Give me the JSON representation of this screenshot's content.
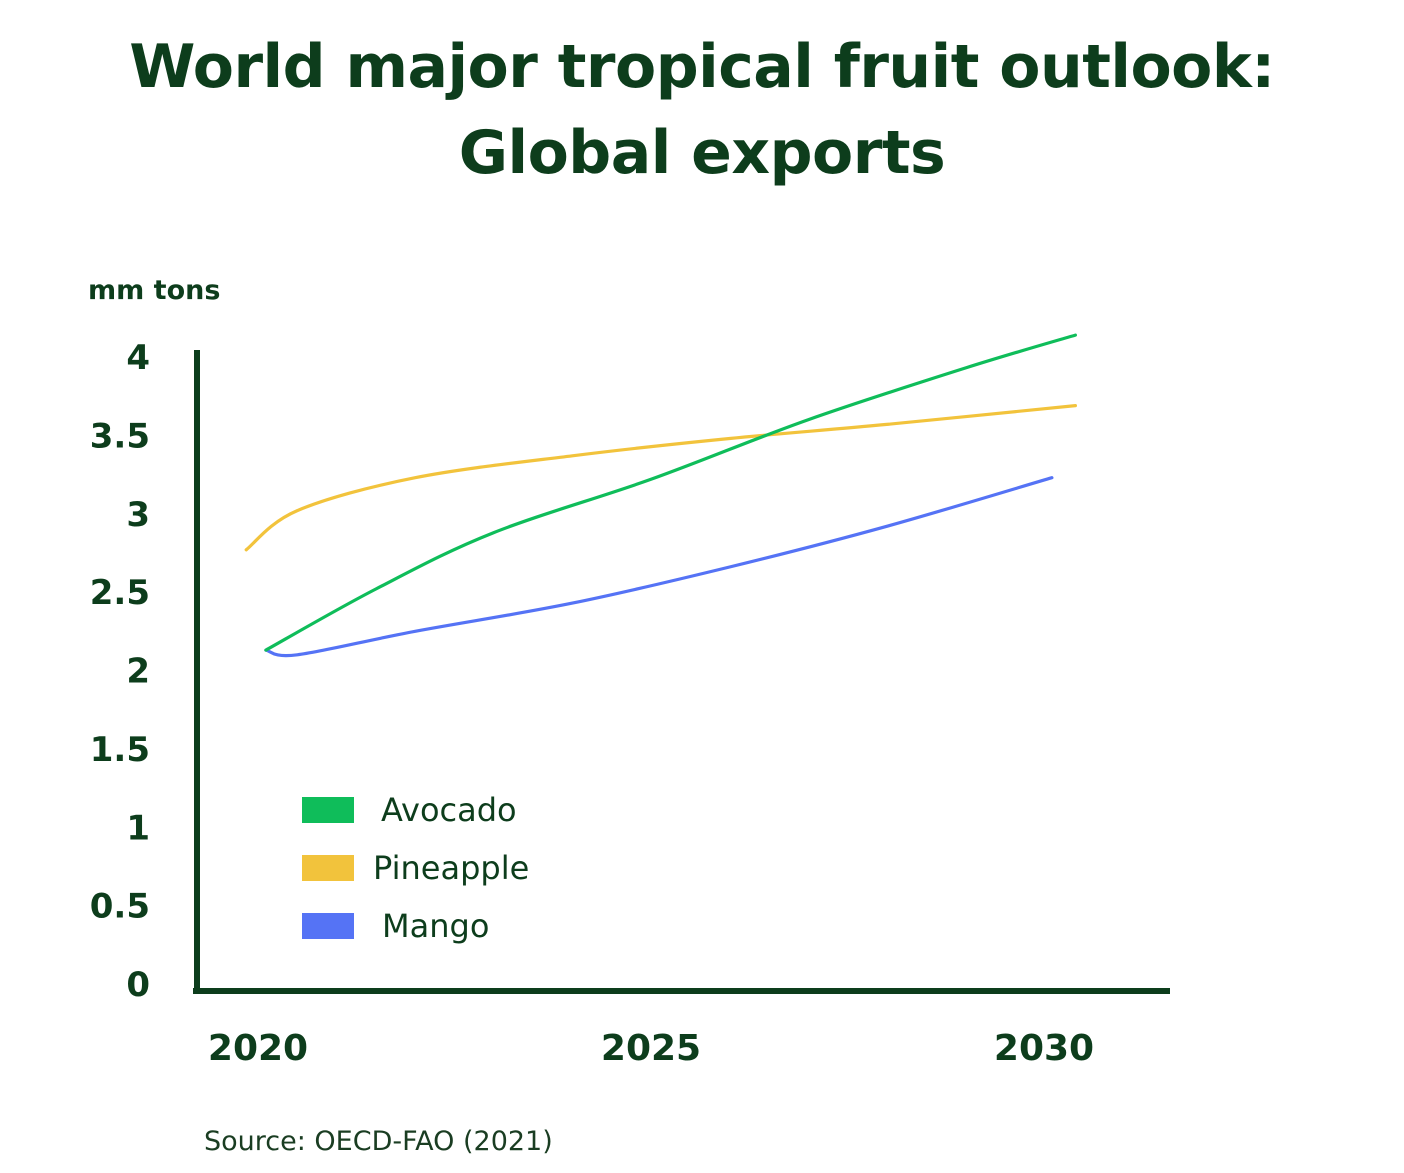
{
  "chart_data": {
    "type": "line",
    "title_lines": [
      "World major tropical fruit outlook:",
      "Global exports"
    ],
    "ylabel": "mm tons",
    "xlabel": "",
    "ylim": [
      0,
      4
    ],
    "yticks": [
      "0",
      "0.5",
      "1",
      "1.5",
      "2",
      "2.5",
      "3",
      "3.5",
      "4"
    ],
    "yticks_values": [
      0,
      0.5,
      1,
      1.5,
      2,
      2.5,
      3,
      3.5,
      4
    ],
    "xticks": [
      "2020",
      "2025",
      "2030"
    ],
    "xticks_values": [
      2020,
      2025,
      2030
    ],
    "xlim": [
      2020,
      2030
    ],
    "grid": false,
    "legend_position": "bottom-left",
    "series": [
      {
        "name": "Avocado",
        "color": "#0fbd5a",
        "x": [
          2020.1,
          2021.5,
          2023,
          2025,
          2027,
          2029,
          2030.4
        ],
        "y": [
          2.13,
          2.52,
          2.88,
          3.22,
          3.6,
          3.93,
          4.14
        ]
      },
      {
        "name": "Pineapple",
        "color": "#f2c33c",
        "x": [
          2019.85,
          2020.5,
          2022,
          2024,
          2026,
          2028,
          2030.4
        ],
        "y": [
          2.77,
          3.02,
          3.23,
          3.37,
          3.48,
          3.57,
          3.69
        ]
      },
      {
        "name": "Mango",
        "color": "#5573f5",
        "x": [
          2020.1,
          2020.5,
          2022,
          2024,
          2026,
          2028,
          2030.1
        ],
        "y": [
          2.13,
          2.1,
          2.25,
          2.43,
          2.66,
          2.92,
          3.23
        ]
      }
    ]
  },
  "source": "Source: OECD-FAO (2021)"
}
